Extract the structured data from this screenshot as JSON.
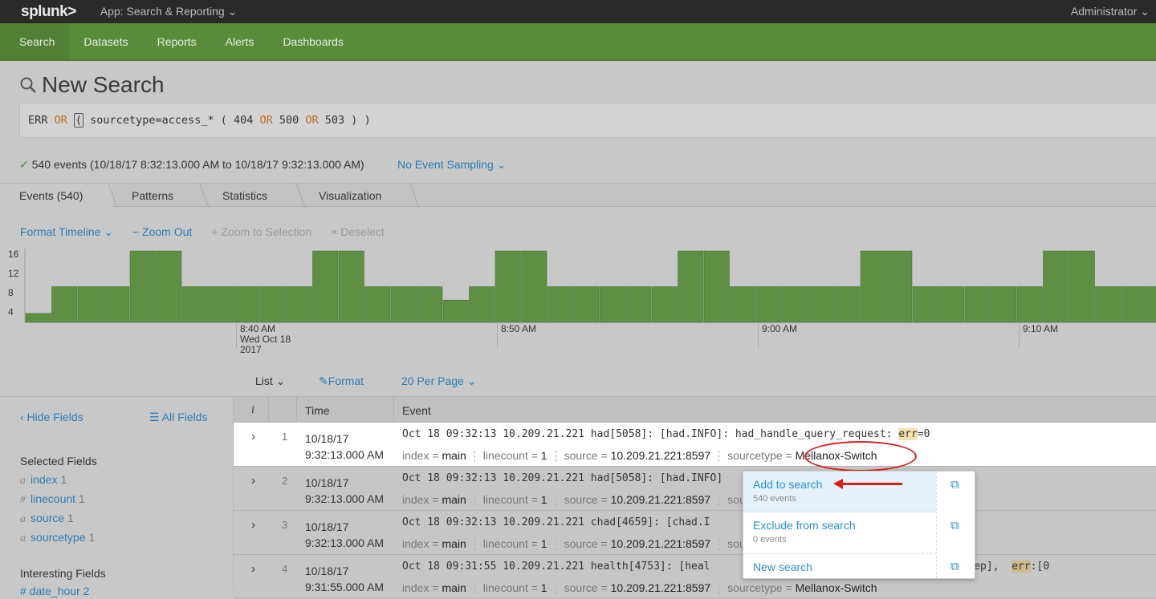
{
  "topbar": {
    "logo": "splunk>",
    "app": "App: Search & Reporting ⌄",
    "user": "Administrator ⌄"
  },
  "nav": [
    "Search",
    "Datasets",
    "Reports",
    "Alerts",
    "Dashboards"
  ],
  "page_title": "New Search",
  "search": {
    "parts": [
      [
        "ERR",
        ""
      ],
      [
        " OR ",
        "kw"
      ],
      [
        "(",
        "cursor"
      ],
      [
        " sourcetype=access_* ( 404",
        ""
      ],
      [
        " OR ",
        "kw"
      ],
      [
        "500",
        ""
      ],
      [
        " OR ",
        "kw"
      ],
      [
        "503 ) )",
        ""
      ]
    ]
  },
  "status": {
    "check": "✓",
    "text": "540 events (10/18/17 8:32:13.000 AM to 10/18/17 9:32:13.000 AM)",
    "sampling": "No Event Sampling ⌄"
  },
  "tabs": [
    "Events (540)",
    "Patterns",
    "Statistics",
    "Visualization"
  ],
  "timeline_tools": {
    "format": "Format Timeline ⌄",
    "zoom_out": "− Zoom Out",
    "zoom_sel": "+ Zoom to Selection",
    "deselect": "× Deselect"
  },
  "chart_data": {
    "type": "bar",
    "y_ticks": [
      "16",
      "12",
      "8",
      "4"
    ],
    "ylim": [
      0,
      17
    ],
    "bar_color": "#5f8e45",
    "x_labels": [
      {
        "minute": 8,
        "text": "8:40 AM\nWed Oct 18\n2017"
      },
      {
        "minute": 18,
        "text": "8:50 AM"
      },
      {
        "minute": 28,
        "text": "9:00 AM"
      },
      {
        "minute": 38,
        "text": "9:10 AM"
      }
    ],
    "values": [
      2,
      8,
      8,
      8,
      16,
      16,
      8,
      8,
      8,
      8,
      8,
      16,
      16,
      8,
      8,
      8,
      5,
      8,
      16,
      16,
      8,
      8,
      8,
      8,
      8,
      16,
      16,
      8,
      8,
      8,
      8,
      8,
      16,
      16,
      8,
      8,
      8,
      8,
      8,
      16,
      16,
      8,
      8,
      8
    ]
  },
  "views": {
    "list": "List ⌄",
    "format": "✎Format",
    "per_page": "20 Per Page ⌄"
  },
  "sidebar": {
    "hide": "‹ Hide Fields",
    "all": "☰ All Fields",
    "selected_title": "Selected Fields",
    "fields": [
      {
        "t": "a",
        "n": "index",
        "c": "1"
      },
      {
        "t": "#",
        "n": "linecount",
        "c": "1"
      },
      {
        "t": "a",
        "n": "source",
        "c": "1"
      },
      {
        "t": "a",
        "n": "sourcetype",
        "c": "1"
      }
    ],
    "interesting_title": "Interesting Fields",
    "interesting_first": "# date_hour 2"
  },
  "table": {
    "headers": [
      "i",
      "Time",
      "Event"
    ],
    "rows": [
      {
        "n": "1",
        "date": "10/18/17",
        "time": "9:32:13.000 AM",
        "pre": "Oct 18 09:32:13 10.209.21.221 had[5058]: [had.INFO]: had_handle_query_request: ",
        "hl": "err",
        "post": "=0"
      },
      {
        "n": "2",
        "date": "10/18/17",
        "time": "9:32:13.000 AM",
        "pre": "Oct 18 09:32:13 10.209.21.221 had[5058]: [had.INFO]",
        "hl": "",
        "post": ""
      },
      {
        "n": "3",
        "date": "10/18/17",
        "time": "9:32:13.000 AM",
        "pre": "Oct 18 09:32:13 10.209.21.221 chad[4659]: [chad.I",
        "hl": "",
        "post": ""
      },
      {
        "n": "4",
        "date": "10/18/17",
        "time": "9:31:55.000 AM",
        "pre": "Oct 18 09:31:55 10.209.21.221 health[4753]: [heal                           gmt_perform_sweep],  ",
        "hl": "err",
        "post": ":[0"
      }
    ],
    "meta": {
      "index_k": "index = ",
      "index_v": "main",
      "lc_k": "linecount = ",
      "lc_v": "1",
      "src_k": "source = ",
      "src_v": "10.209.21.221:8597",
      "st_k": "sourcetype = ",
      "st_v": "Mellanox-Switch"
    }
  },
  "popup": [
    {
      "label": "Add to search",
      "sub": "540 events"
    },
    {
      "label": "Exclude from search",
      "sub": "0 events"
    },
    {
      "label": "New search",
      "sub": ""
    }
  ],
  "annotation_color": "#d91c1c"
}
